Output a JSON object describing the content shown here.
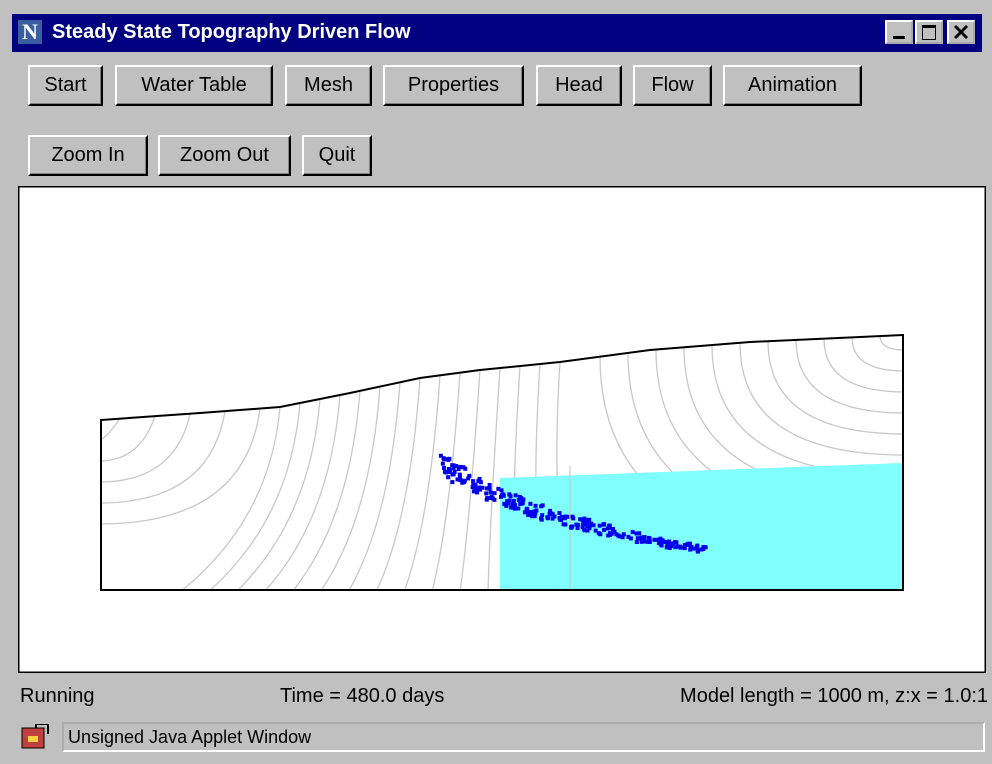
{
  "window": {
    "icon": "N",
    "title": "Steady State Topography Driven Flow"
  },
  "toolbar": {
    "rows": [
      [
        "Start",
        "Water Table",
        "Mesh",
        "Properties",
        "Head",
        "Flow",
        "Animation"
      ],
      [
        "Zoom In",
        "Zoom Out",
        "Quit"
      ]
    ]
  },
  "status": {
    "state": "Running",
    "time": "Time = 480.0 days",
    "model": "Model length = 1000 m, z:x = 1.0:1"
  },
  "footer": "Unsigned Java Applet Window"
}
